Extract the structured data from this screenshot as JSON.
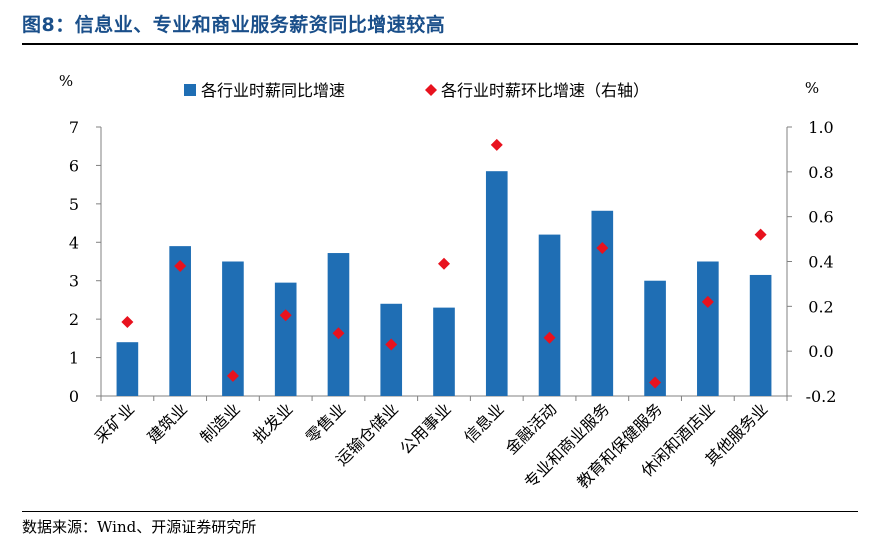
{
  "title": "图8：信息业、专业和商业服务薪资同比增速较高",
  "source": "数据来源：Wind、开源证券研究所",
  "chart_data": {
    "type": "bar",
    "categories": [
      "采矿业",
      "建筑业",
      "制造业",
      "批发业",
      "零售业",
      "运输仓储业",
      "公用事业",
      "信息业",
      "金融活动",
      "专业和商业服务",
      "教育和保健服务",
      "休闲和酒店业",
      "其他服务业"
    ],
    "series": [
      {
        "name": "各行业时薪同比增速",
        "type": "bar",
        "axis": "left",
        "color": "#1f6eb4",
        "values": [
          1.4,
          3.9,
          3.5,
          2.95,
          3.72,
          2.4,
          2.3,
          5.85,
          4.2,
          4.82,
          3.0,
          3.5,
          3.15
        ]
      },
      {
        "name": "各行业时薪环比增速（右轴）",
        "type": "scatter",
        "axis": "right",
        "color": "#e8121e",
        "values": [
          0.13,
          0.38,
          -0.11,
          0.16,
          0.08,
          0.03,
          0.39,
          0.92,
          0.06,
          0.46,
          -0.14,
          0.22,
          0.52
        ]
      }
    ],
    "left_axis": {
      "unit": "%",
      "ylim": [
        0,
        7
      ],
      "ticks": [
        "0",
        "1",
        "2",
        "3",
        "4",
        "5",
        "6",
        "7"
      ],
      "tick_values": [
        0,
        1,
        2,
        3,
        4,
        5,
        6,
        7
      ]
    },
    "right_axis": {
      "unit": "%",
      "ylim": [
        -0.2,
        1.0
      ],
      "ticks": [
        "-0.2",
        "0.0",
        "0.2",
        "0.4",
        "0.6",
        "0.8",
        "1.0"
      ],
      "tick_values": [
        -0.2,
        0,
        0.2,
        0.4,
        0.6,
        0.8,
        1.0
      ]
    },
    "legend_position": "top-center",
    "grid": false
  }
}
